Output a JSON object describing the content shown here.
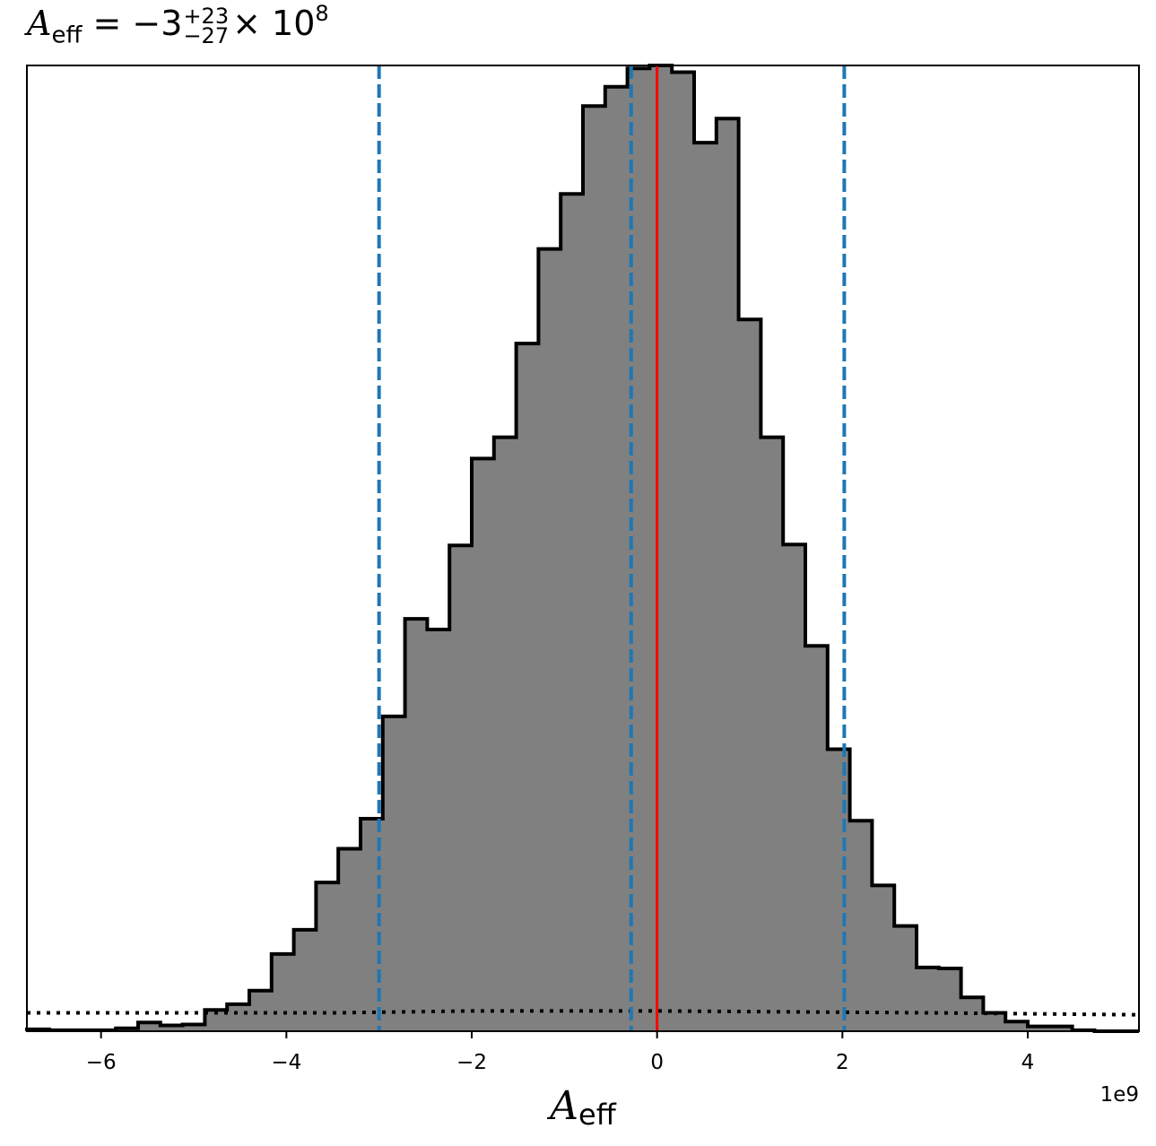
{
  "title": {
    "symbol": "A",
    "subscript": "eff",
    "equals": "=",
    "value": "−3",
    "upper_err": "+23",
    "lower_err": "−27",
    "times": "×",
    "base": "10",
    "exponent": "8"
  },
  "chart_data": {
    "type": "histogram",
    "xlabel": {
      "symbol": "A",
      "subscript": "eff"
    },
    "x_offset_text": "1e9",
    "xlim": [
      -6.8,
      5.2
    ],
    "ylim": [
      0,
      1
    ],
    "xticks": [
      -6,
      -4,
      -2,
      0,
      2,
      4
    ],
    "xtick_labels": [
      "−6",
      "−4",
      "−2",
      "0",
      "2",
      "4"
    ],
    "y_ticks_shown": false,
    "bin_edges": [
      -6.8,
      -6.56,
      -6.32,
      -6.08,
      -5.84,
      -5.6,
      -5.36,
      -5.12,
      -4.88,
      -4.64,
      -4.4,
      -4.16,
      -3.92,
      -3.68,
      -3.44,
      -3.2,
      -2.96,
      -2.72,
      -2.48,
      -2.24,
      -2.0,
      -1.76,
      -1.52,
      -1.28,
      -1.04,
      -0.8,
      -0.56,
      -0.32,
      -0.08,
      0.16,
      0.4,
      0.64,
      0.88,
      1.12,
      1.36,
      1.6,
      1.84,
      2.08,
      2.32,
      2.56,
      2.8,
      3.04,
      3.28,
      3.52,
      3.76,
      4.0,
      4.24,
      4.48,
      4.72,
      4.96,
      5.2
    ],
    "bin_heights": [
      0.002,
      0.001,
      0.001,
      0.001,
      0.003,
      0.009,
      0.006,
      0.007,
      0.022,
      0.028,
      0.042,
      0.08,
      0.105,
      0.154,
      0.189,
      0.22,
      0.326,
      0.427,
      0.416,
      0.503,
      0.593,
      0.615,
      0.712,
      0.81,
      0.867,
      0.958,
      0.978,
      0.997,
      1.0,
      0.993,
      0.92,
      0.945,
      0.737,
      0.615,
      0.504,
      0.399,
      0.292,
      0.218,
      0.151,
      0.109,
      0.066,
      0.065,
      0.035,
      0.019,
      0.01,
      0.005,
      0.005,
      0.001,
      0.0,
      0.0
    ],
    "hist_fill": "#808080",
    "hist_edge": "#000000",
    "vlines": [
      {
        "x": -3.0,
        "color": "#1f77b4",
        "style": "dashed"
      },
      {
        "x": -0.28,
        "color": "#1f77b4",
        "style": "dashed"
      },
      {
        "x": 2.02,
        "color": "#1f77b4",
        "style": "dashed"
      },
      {
        "x": 0.0,
        "color": "#ff0000",
        "style": "solid"
      }
    ],
    "prior_line": {
      "points": [
        [
          -6.8,
          0.019
        ],
        [
          -3.5,
          0.019
        ],
        [
          -2.0,
          0.021
        ],
        [
          0.0,
          0.021
        ],
        [
          3.0,
          0.019
        ],
        [
          5.2,
          0.017
        ]
      ],
      "color": "#000000",
      "style": "dotted"
    }
  }
}
